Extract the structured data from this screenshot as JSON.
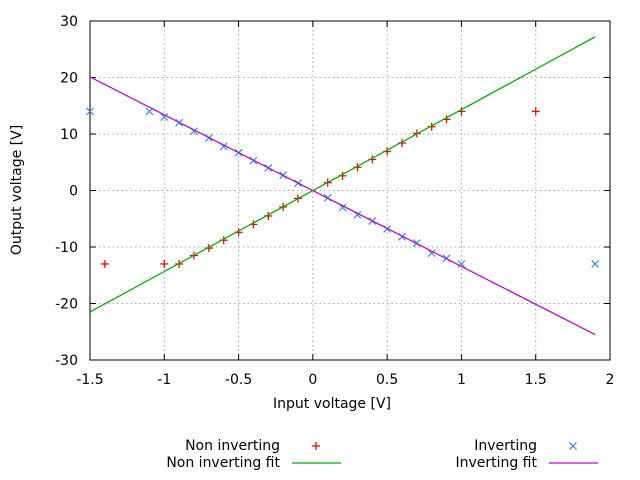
{
  "chart_data": {
    "type": "scatter",
    "title": "",
    "xlabel": "Input voltage [V]",
    "ylabel": "Output voltage [V]",
    "xlim": [
      -1.5,
      2
    ],
    "ylim": [
      -30,
      30
    ],
    "x_ticks": [
      -1.5,
      -1,
      -0.5,
      0,
      0.5,
      1,
      1.5,
      2
    ],
    "x_tick_labels": [
      "-1.5",
      "-1",
      "-0.5",
      "0",
      "0.5",
      "1",
      "1.5",
      "2"
    ],
    "y_ticks": [
      -30,
      -20,
      -10,
      0,
      10,
      20,
      30
    ],
    "y_tick_labels": [
      "-30",
      "-20",
      "-10",
      "0",
      "10",
      "20",
      "30"
    ],
    "grid": true,
    "grid_style": "dotted",
    "grid_color": "#a8a8a8",
    "axis_color": "#000000",
    "text_color": "#000000",
    "legend_position": "bottom-center-two-columns",
    "series": [
      {
        "name": "Non inverting",
        "type": "points",
        "marker": "plus",
        "color": "#ee0000",
        "points": [
          [
            -1.4,
            -13
          ],
          [
            -1.0,
            -13
          ],
          [
            -0.9,
            -13
          ],
          [
            -0.8,
            -11.5
          ],
          [
            -0.7,
            -10.2
          ],
          [
            -0.6,
            -8.8
          ],
          [
            -0.5,
            -7.4
          ],
          [
            -0.4,
            -6.0
          ],
          [
            -0.3,
            -4.5
          ],
          [
            -0.2,
            -2.9
          ],
          [
            -0.1,
            -1.4
          ],
          [
            0.1,
            1.4
          ],
          [
            0.2,
            2.6
          ],
          [
            0.3,
            4.1
          ],
          [
            0.4,
            5.5
          ],
          [
            0.5,
            6.9
          ],
          [
            0.6,
            8.4
          ],
          [
            0.7,
            10.1
          ],
          [
            0.8,
            11.3
          ],
          [
            0.9,
            12.6
          ],
          [
            1.0,
            14.0
          ],
          [
            1.5,
            14.0
          ]
        ]
      },
      {
        "name": "Non inverting fit",
        "type": "line",
        "color": "#00ab00",
        "slope": 14.3,
        "intercept": 0.0,
        "points": [
          [
            -1.5,
            -21.5
          ],
          [
            1.9,
            27.2
          ]
        ]
      },
      {
        "name": "Inverting",
        "type": "points",
        "marker": "cross",
        "color": "#3d8de2",
        "points": [
          [
            -1.5,
            14.0
          ],
          [
            -1.1,
            14.0
          ],
          [
            -1.0,
            13.0
          ],
          [
            -0.9,
            12.0
          ],
          [
            -0.8,
            10.5
          ],
          [
            -0.7,
            9.3
          ],
          [
            -0.6,
            7.8
          ],
          [
            -0.5,
            6.7
          ],
          [
            -0.4,
            5.3
          ],
          [
            -0.3,
            4.0
          ],
          [
            -0.2,
            2.7
          ],
          [
            -0.1,
            1.3
          ],
          [
            0.1,
            -1.3
          ],
          [
            0.2,
            -3.0
          ],
          [
            0.3,
            -4.3
          ],
          [
            0.4,
            -5.4
          ],
          [
            0.5,
            -6.8
          ],
          [
            0.6,
            -8.2
          ],
          [
            0.7,
            -9.3
          ],
          [
            0.8,
            -11.1
          ],
          [
            0.9,
            -12.0
          ],
          [
            1.0,
            -13.0
          ],
          [
            1.9,
            -13.0
          ]
        ]
      },
      {
        "name": "Inverting fit",
        "type": "line",
        "color": "#c400d3",
        "slope": -13.4,
        "intercept": 0.0,
        "points": [
          [
            -1.5,
            20.1
          ],
          [
            1.9,
            -25.5
          ]
        ]
      }
    ]
  }
}
